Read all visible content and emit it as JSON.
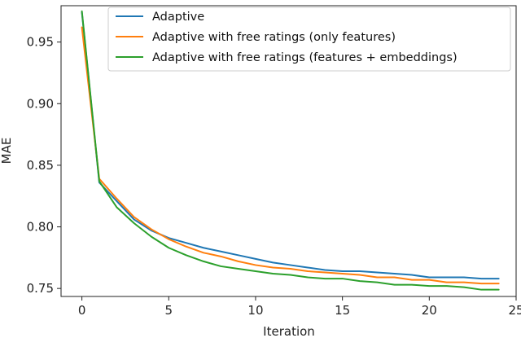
{
  "chart_data": {
    "type": "line",
    "title": "",
    "xlabel": "Iteration",
    "ylabel": "MAE",
    "xlim": [
      -1.2,
      25
    ],
    "ylim": [
      0.7435,
      0.9795
    ],
    "xticks": [
      0,
      5,
      10,
      15,
      20,
      25
    ],
    "xtick_labels": [
      "0",
      "5",
      "10",
      "15",
      "20",
      "25"
    ],
    "yticks": [
      0.75,
      0.8,
      0.85,
      0.9,
      0.95
    ],
    "ytick_labels": [
      "0.75",
      "0.80",
      "0.85",
      "0.90",
      "0.95"
    ],
    "grid": false,
    "legend_position": "top-right",
    "x": [
      0,
      1,
      2,
      3,
      4,
      5,
      6,
      7,
      8,
      9,
      10,
      11,
      12,
      13,
      14,
      15,
      16,
      17,
      18,
      19,
      20,
      21,
      22,
      23,
      24
    ],
    "series": [
      {
        "name": "Adaptive",
        "color": "#1f77b4",
        "values": [
          0.974,
          0.836,
          0.821,
          0.806,
          0.797,
          0.791,
          0.787,
          0.783,
          0.78,
          0.777,
          0.774,
          0.771,
          0.769,
          0.767,
          0.765,
          0.764,
          0.764,
          0.763,
          0.762,
          0.761,
          0.759,
          0.759,
          0.759,
          0.758,
          0.758
        ]
      },
      {
        "name": "Adaptive with free ratings (only features)",
        "color": "#ff7f0e",
        "values": [
          0.962,
          0.839,
          0.823,
          0.808,
          0.798,
          0.79,
          0.784,
          0.779,
          0.776,
          0.772,
          0.769,
          0.767,
          0.766,
          0.764,
          0.763,
          0.762,
          0.761,
          0.759,
          0.759,
          0.757,
          0.757,
          0.755,
          0.755,
          0.754,
          0.754
        ]
      },
      {
        "name": "Adaptive with free ratings (features + embeddings)",
        "color": "#2ca02c",
        "values": [
          0.975,
          0.837,
          0.816,
          0.803,
          0.792,
          0.783,
          0.777,
          0.772,
          0.768,
          0.766,
          0.764,
          0.762,
          0.761,
          0.759,
          0.758,
          0.758,
          0.756,
          0.755,
          0.753,
          0.753,
          0.752,
          0.752,
          0.751,
          0.749,
          0.749
        ]
      }
    ]
  }
}
